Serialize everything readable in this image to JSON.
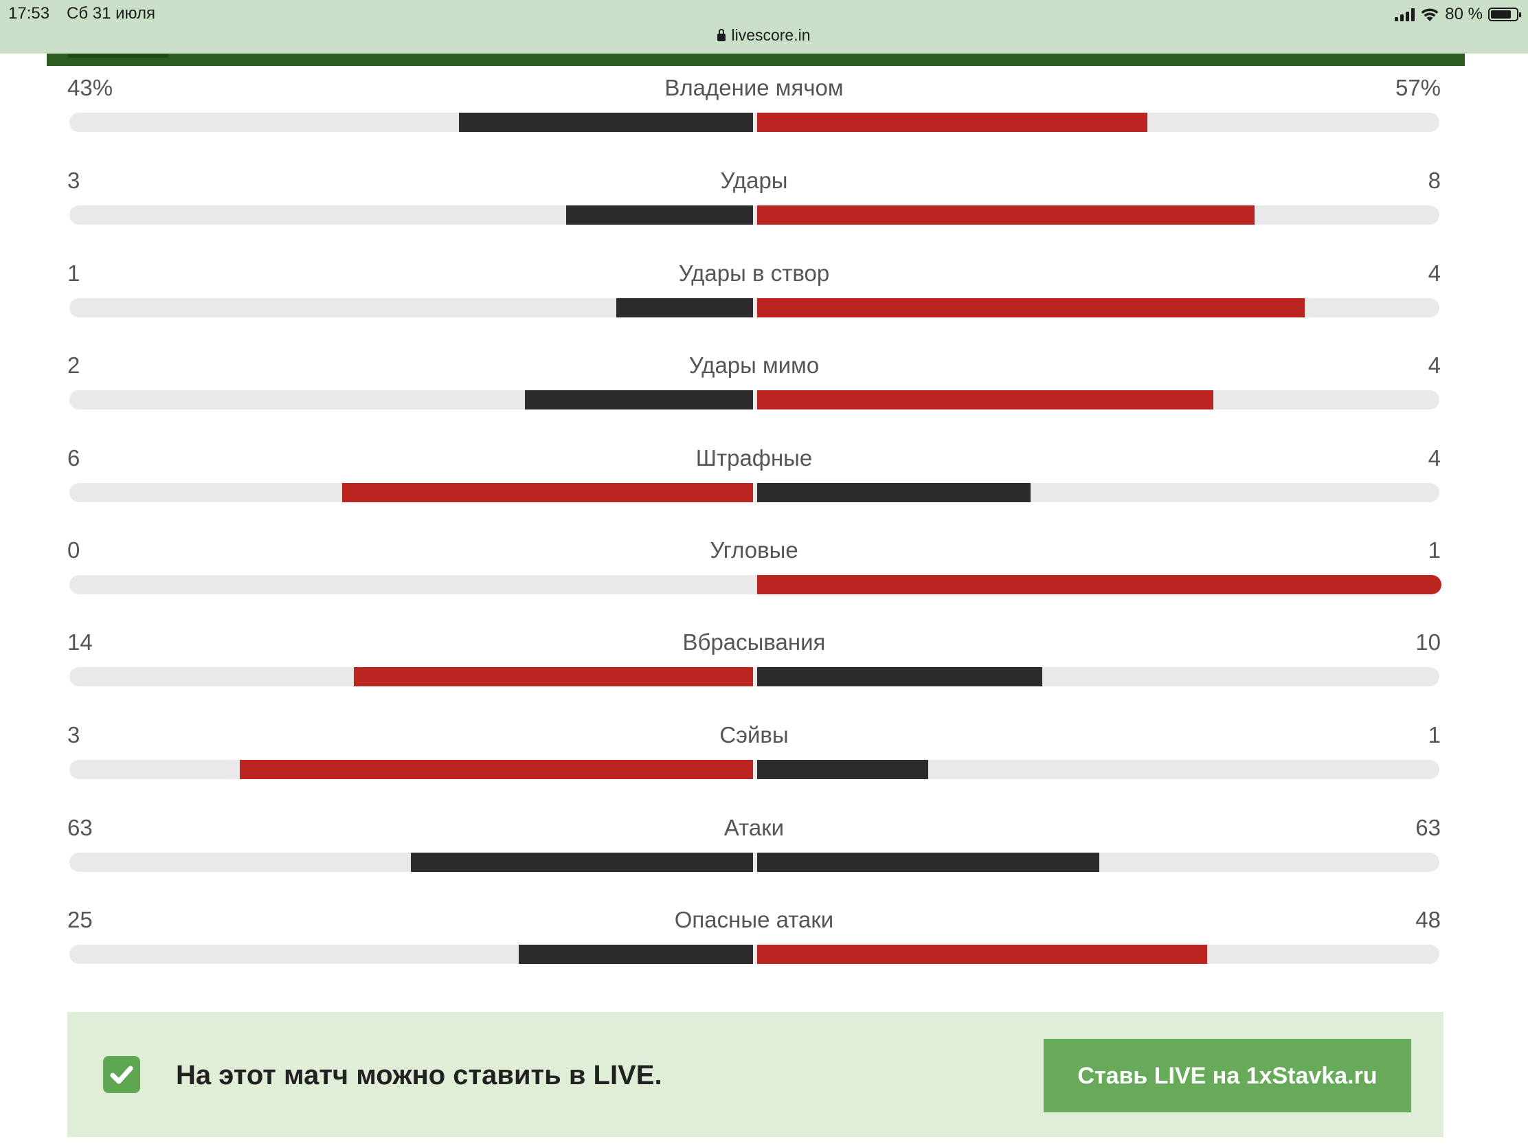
{
  "status_bar": {
    "time": "17:53",
    "date": "Сб 31 июля",
    "battery": "80 %",
    "battery_level": 0.8,
    "signal_icon": "cellular-signal-icon",
    "wifi_icon": "wifi-icon",
    "battery_icon": "battery-icon"
  },
  "address_bar": {
    "url": "livescore.in",
    "lock_icon": "lock-icon"
  },
  "colors": {
    "header_green": "#2d5d1e",
    "status_bg": "#c9dfc8",
    "bar_dark": "#2b2b2b",
    "bar_red": "#bb251f",
    "track": "#e9e9e9",
    "promo_bg": "#e0edd7",
    "button_green": "#67aa5a"
  },
  "stats": [
    {
      "title": "Владение мячом",
      "home": "43%",
      "away": "57%",
      "home_value": 43,
      "away_value": 57
    },
    {
      "title": "Удары",
      "home": "3",
      "away": "8",
      "home_value": 3,
      "away_value": 8
    },
    {
      "title": "Удары в створ",
      "home": "1",
      "away": "4",
      "home_value": 1,
      "away_value": 4
    },
    {
      "title": "Удары мимо",
      "home": "2",
      "away": "4",
      "home_value": 2,
      "away_value": 4
    },
    {
      "title": "Штрафные",
      "home": "6",
      "away": "4",
      "home_value": 6,
      "away_value": 4
    },
    {
      "title": "Угловые",
      "home": "0",
      "away": "1",
      "home_value": 0,
      "away_value": 1
    },
    {
      "title": "Вбрасывания",
      "home": "14",
      "away": "10",
      "home_value": 14,
      "away_value": 10
    },
    {
      "title": "Сэйвы",
      "home": "3",
      "away": "1",
      "home_value": 3,
      "away_value": 1
    },
    {
      "title": "Атаки",
      "home": "63",
      "away": "63",
      "home_value": 63,
      "away_value": 63
    },
    {
      "title": "Опасные атаки",
      "home": "25",
      "away": "48",
      "home_value": 25,
      "away_value": 48
    }
  ],
  "promo": {
    "check_icon": "checkbox-checked-icon",
    "text": "На этот матч можно ставить в LIVE.",
    "button_label": "Ставь LIVE на 1xStavka.ru"
  }
}
